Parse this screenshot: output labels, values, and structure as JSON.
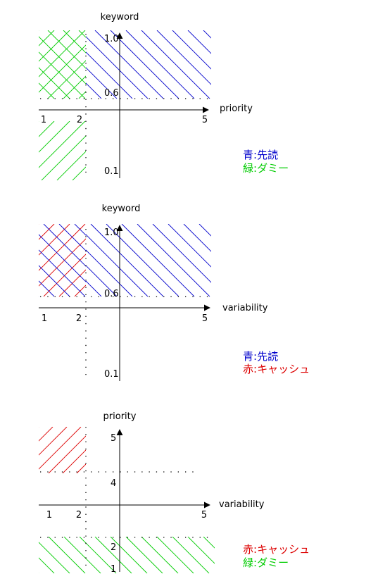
{
  "colors": {
    "blue": "#0000cc",
    "green": "#00cc00",
    "red": "#dd0000",
    "axis": "#000000"
  },
  "panel1": {
    "y_title": "keyword",
    "x_title": "priority",
    "x_ticks": [
      "1",
      "2",
      "5"
    ],
    "y_ticks": [
      "1.0",
      "0.6",
      "0.1"
    ],
    "legend": [
      {
        "key": "青",
        "sep": ":",
        "value": "先読",
        "color": "#0000cc"
      },
      {
        "key": "緑",
        "sep": ":",
        "value": "ダミー",
        "color": "#00cc00"
      }
    ]
  },
  "panel2": {
    "y_title": "keyword",
    "x_title": "variability",
    "x_ticks": [
      "1",
      "2",
      "5"
    ],
    "y_ticks": [
      "1.0",
      "0.6",
      "0.1"
    ],
    "legend": [
      {
        "key": "青",
        "sep": ":",
        "value": "先読",
        "color": "#0000cc"
      },
      {
        "key": "赤",
        "sep": ":",
        "value": "キャッシュ",
        "color": "#dd0000"
      }
    ]
  },
  "panel3": {
    "y_title": "priority",
    "x_title": "variability",
    "x_ticks": [
      "1",
      "2",
      "5"
    ],
    "y_ticks": [
      "5",
      "4",
      "2",
      "1"
    ],
    "legend": [
      {
        "key": "赤",
        "sep": ":",
        "value": "キャッシュ",
        "color": "#dd0000"
      },
      {
        "key": "緑",
        "sep": ":",
        "value": "ダミー",
        "color": "#00cc00"
      }
    ]
  }
}
